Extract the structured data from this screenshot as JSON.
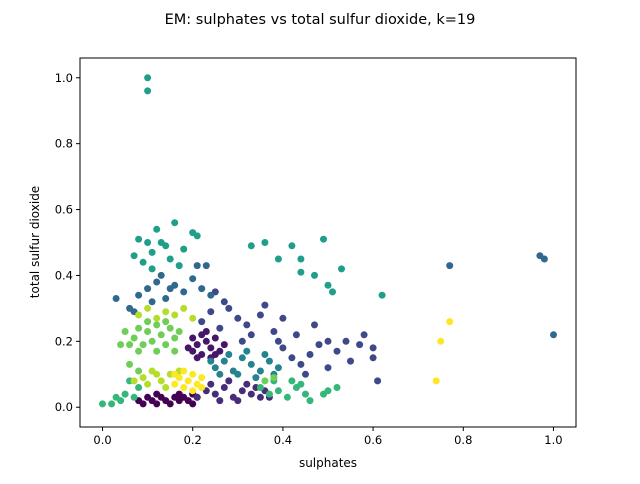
{
  "chart_data": {
    "type": "scatter",
    "title": "EM: sulphates vs total sulfur dioxide, k=19",
    "xlabel": "sulphates",
    "ylabel": "total sulfur dioxide",
    "xlim": [
      -0.05,
      1.05
    ],
    "ylim": [
      -0.06,
      1.06
    ],
    "xticks": [
      "0.0",
      "0.2",
      "0.4",
      "0.6",
      "0.8",
      "1.0"
    ],
    "yticks": [
      "0.0",
      "0.2",
      "0.4",
      "0.6",
      "0.8",
      "1.0"
    ],
    "grid": false,
    "legend": "none",
    "clusters": [
      {
        "color": "#440154",
        "points": [
          [
            0.08,
            0.02
          ],
          [
            0.09,
            0.01
          ],
          [
            0.1,
            0.03
          ],
          [
            0.11,
            0.02
          ],
          [
            0.12,
            0.01
          ],
          [
            0.13,
            0.03
          ],
          [
            0.14,
            0.02
          ],
          [
            0.15,
            0.01
          ],
          [
            0.16,
            0.03
          ],
          [
            0.17,
            0.02
          ],
          [
            0.18,
            0.03
          ],
          [
            0.19,
            0.02
          ],
          [
            0.2,
            0.01
          ],
          [
            0.21,
            0.03
          ],
          [
            0.12,
            0.04
          ],
          [
            0.17,
            0.04
          ],
          [
            0.2,
            0.04
          ]
        ]
      },
      {
        "color": "#481668",
        "points": [
          [
            0.2,
            0.17
          ],
          [
            0.21,
            0.19
          ],
          [
            0.22,
            0.16
          ],
          [
            0.23,
            0.2
          ],
          [
            0.24,
            0.18
          ],
          [
            0.25,
            0.21
          ],
          [
            0.26,
            0.17
          ],
          [
            0.22,
            0.22
          ],
          [
            0.21,
            0.15
          ],
          [
            0.24,
            0.15
          ],
          [
            0.27,
            0.19
          ],
          [
            0.19,
            0.18
          ],
          [
            0.23,
            0.23
          ],
          [
            0.25,
            0.16
          ],
          [
            0.2,
            0.21
          ]
        ]
      },
      {
        "color": "#472c7a",
        "points": [
          [
            0.21,
            0.03
          ],
          [
            0.23,
            0.05
          ],
          [
            0.25,
            0.04
          ],
          [
            0.27,
            0.06
          ],
          [
            0.29,
            0.03
          ],
          [
            0.31,
            0.05
          ],
          [
            0.33,
            0.04
          ],
          [
            0.35,
            0.03
          ],
          [
            0.24,
            0.07
          ],
          [
            0.28,
            0.08
          ],
          [
            0.32,
            0.07
          ],
          [
            0.3,
            0.02
          ],
          [
            0.26,
            0.02
          ],
          [
            0.34,
            0.06
          ],
          [
            0.36,
            0.05
          ],
          [
            0.37,
            0.03
          ]
        ]
      },
      {
        "color": "#3e4989",
        "points": [
          [
            0.22,
            0.26
          ],
          [
            0.24,
            0.29
          ],
          [
            0.26,
            0.24
          ],
          [
            0.28,
            0.3
          ],
          [
            0.3,
            0.27
          ],
          [
            0.32,
            0.25
          ],
          [
            0.35,
            0.28
          ],
          [
            0.38,
            0.23
          ],
          [
            0.4,
            0.18
          ],
          [
            0.42,
            0.15
          ],
          [
            0.44,
            0.13
          ],
          [
            0.46,
            0.16
          ],
          [
            0.48,
            0.19
          ],
          [
            0.5,
            0.2
          ],
          [
            0.52,
            0.17
          ],
          [
            0.55,
            0.14
          ],
          [
            0.58,
            0.22
          ],
          [
            0.6,
            0.15
          ],
          [
            0.61,
            0.08
          ],
          [
            0.6,
            0.18
          ],
          [
            0.57,
            0.19
          ],
          [
            0.54,
            0.2
          ],
          [
            0.47,
            0.25
          ],
          [
            0.4,
            0.27
          ],
          [
            0.36,
            0.31
          ],
          [
            0.33,
            0.22
          ],
          [
            0.39,
            0.2
          ],
          [
            0.45,
            0.1
          ],
          [
            0.5,
            0.12
          ],
          [
            0.25,
            0.35
          ],
          [
            0.27,
            0.32
          ],
          [
            0.31,
            0.2
          ],
          [
            0.43,
            0.22
          ]
        ]
      },
      {
        "color": "#31688e",
        "points": [
          [
            0.03,
            0.33
          ],
          [
            0.06,
            0.3
          ],
          [
            0.08,
            0.34
          ],
          [
            0.1,
            0.36
          ],
          [
            0.12,
            0.38
          ],
          [
            0.14,
            0.33
          ],
          [
            0.16,
            0.37
          ],
          [
            0.18,
            0.35
          ],
          [
            0.2,
            0.39
          ],
          [
            0.22,
            0.36
          ],
          [
            0.24,
            0.34
          ],
          [
            0.21,
            0.43
          ],
          [
            0.23,
            0.43
          ],
          [
            0.15,
            0.36
          ],
          [
            0.11,
            0.32
          ],
          [
            0.07,
            0.29
          ],
          [
            0.77,
            0.43
          ],
          [
            0.97,
            0.46
          ],
          [
            0.98,
            0.45
          ],
          [
            1.0,
            0.22
          ],
          [
            0.13,
            0.4
          ]
        ]
      },
      {
        "color": "#26828e",
        "points": [
          [
            0.25,
            0.12
          ],
          [
            0.27,
            0.14
          ],
          [
            0.29,
            0.11
          ],
          [
            0.31,
            0.15
          ],
          [
            0.33,
            0.13
          ],
          [
            0.35,
            0.11
          ],
          [
            0.37,
            0.14
          ],
          [
            0.39,
            0.12
          ],
          [
            0.28,
            0.16
          ],
          [
            0.32,
            0.17
          ],
          [
            0.36,
            0.16
          ],
          [
            0.3,
            0.1
          ],
          [
            0.34,
            0.09
          ],
          [
            0.26,
            0.1
          ],
          [
            0.38,
            0.1
          ],
          [
            0.24,
            0.14
          ]
        ]
      },
      {
        "color": "#1f9e89",
        "points": [
          [
            0.08,
            0.51
          ],
          [
            0.1,
            0.5
          ],
          [
            0.12,
            0.54
          ],
          [
            0.14,
            0.49
          ],
          [
            0.16,
            0.56
          ],
          [
            0.18,
            0.48
          ],
          [
            0.2,
            0.53
          ],
          [
            0.21,
            0.52
          ],
          [
            0.07,
            0.46
          ],
          [
            0.09,
            0.44
          ],
          [
            0.11,
            0.47
          ],
          [
            0.13,
            0.5
          ],
          [
            0.15,
            0.45
          ],
          [
            0.17,
            0.43
          ],
          [
            0.11,
            0.42
          ],
          [
            0.33,
            0.49
          ],
          [
            0.36,
            0.5
          ],
          [
            0.42,
            0.49
          ],
          [
            0.44,
            0.45
          ],
          [
            0.44,
            0.41
          ],
          [
            0.47,
            0.4
          ],
          [
            0.49,
            0.51
          ],
          [
            0.5,
            0.37
          ],
          [
            0.53,
            0.42
          ],
          [
            0.51,
            0.35
          ],
          [
            0.62,
            0.34
          ],
          [
            0.39,
            0.45
          ],
          [
            0.1,
            1.0
          ],
          [
            0.1,
            0.96
          ]
        ]
      },
      {
        "color": "#35b779",
        "points": [
          [
            0.0,
            0.01
          ],
          [
            0.02,
            0.01
          ],
          [
            0.04,
            0.02
          ],
          [
            0.05,
            0.04
          ],
          [
            0.07,
            0.03
          ],
          [
            0.08,
            0.06
          ],
          [
            0.06,
            0.08
          ],
          [
            0.35,
            0.06
          ],
          [
            0.37,
            0.04
          ],
          [
            0.39,
            0.05
          ],
          [
            0.41,
            0.03
          ],
          [
            0.43,
            0.06
          ],
          [
            0.45,
            0.04
          ],
          [
            0.42,
            0.08
          ],
          [
            0.38,
            0.08
          ],
          [
            0.44,
            0.07
          ],
          [
            0.46,
            0.02
          ],
          [
            0.49,
            0.04
          ],
          [
            0.52,
            0.06
          ],
          [
            0.5,
            0.05
          ],
          [
            0.03,
            0.03
          ]
        ]
      },
      {
        "color": "#6ece58",
        "points": [
          [
            0.07,
            0.21
          ],
          [
            0.08,
            0.24
          ],
          [
            0.09,
            0.19
          ],
          [
            0.1,
            0.23
          ],
          [
            0.11,
            0.2
          ],
          [
            0.12,
            0.25
          ],
          [
            0.13,
            0.22
          ],
          [
            0.14,
            0.19
          ],
          [
            0.15,
            0.24
          ],
          [
            0.16,
            0.21
          ],
          [
            0.17,
            0.23
          ],
          [
            0.06,
            0.19
          ],
          [
            0.08,
            0.17
          ],
          [
            0.12,
            0.17
          ],
          [
            0.16,
            0.17
          ],
          [
            0.1,
            0.26
          ],
          [
            0.14,
            0.26
          ],
          [
            0.05,
            0.23
          ],
          [
            0.04,
            0.19
          ],
          [
            0.08,
            0.11
          ],
          [
            0.06,
            0.13
          ],
          [
            0.38,
            0.09
          ],
          [
            0.36,
            0.08
          ]
        ]
      },
      {
        "color": "#b5de2b",
        "points": [
          [
            0.08,
            0.28
          ],
          [
            0.1,
            0.3
          ],
          [
            0.12,
            0.27
          ],
          [
            0.14,
            0.29
          ],
          [
            0.16,
            0.28
          ],
          [
            0.18,
            0.3
          ],
          [
            0.2,
            0.27
          ],
          [
            0.09,
            0.09
          ],
          [
            0.11,
            0.11
          ],
          [
            0.13,
            0.08
          ],
          [
            0.15,
            0.1
          ],
          [
            0.07,
            0.08
          ],
          [
            0.17,
            0.11
          ],
          [
            0.1,
            0.07
          ],
          [
            0.14,
            0.06
          ],
          [
            0.12,
            0.1
          ]
        ]
      },
      {
        "color": "#fde725",
        "points": [
          [
            0.16,
            0.07
          ],
          [
            0.17,
            0.09
          ],
          [
            0.18,
            0.06
          ],
          [
            0.19,
            0.08
          ],
          [
            0.2,
            0.1
          ],
          [
            0.21,
            0.07
          ],
          [
            0.22,
            0.09
          ],
          [
            0.18,
            0.11
          ],
          [
            0.16,
            0.1
          ],
          [
            0.2,
            0.05
          ],
          [
            0.22,
            0.06
          ],
          [
            0.75,
            0.2
          ],
          [
            0.77,
            0.26
          ],
          [
            0.74,
            0.08
          ]
        ]
      }
    ]
  }
}
